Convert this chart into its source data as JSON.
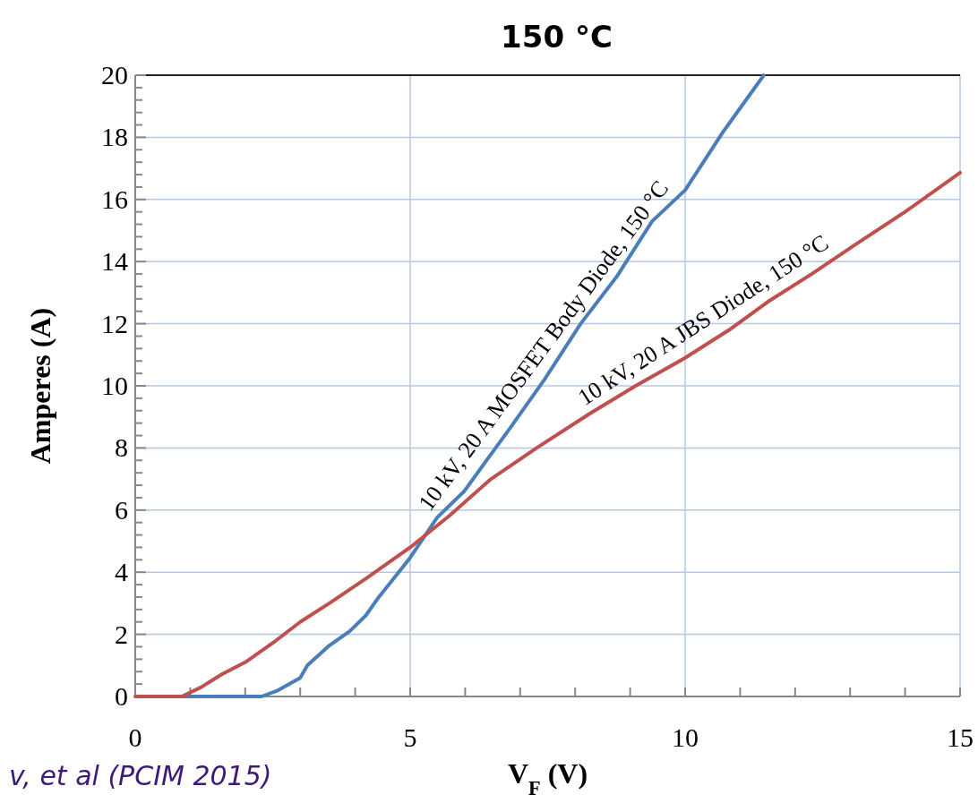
{
  "chart_data": {
    "type": "line",
    "title": "150 °C",
    "xlabel": "V$_{F}$ (V)",
    "ylabel": "Amperes (A)",
    "xlim": [
      0,
      15
    ],
    "ylim": [
      0,
      20
    ],
    "xticks": [
      0,
      {
        "value": 1,
        "label": null
      },
      {
        "value": 2,
        "label": null
      },
      {
        "value": 3,
        "label": null
      },
      {
        "value": 4,
        "label": null
      },
      5,
      {
        "value": 6,
        "label": null
      },
      {
        "value": 7,
        "label": null
      },
      {
        "value": 8,
        "label": null
      },
      {
        "value": 9,
        "label": null
      },
      10,
      {
        "value": 11,
        "label": null
      },
      {
        "value": 12,
        "label": null
      },
      {
        "value": 13,
        "label": null
      },
      {
        "value": 14,
        "label": null
      },
      15
    ],
    "yticks": [
      0,
      2,
      4,
      6,
      8,
      10,
      12,
      14,
      16,
      18,
      20
    ],
    "grid": true,
    "legend": false,
    "marker": "none",
    "line_style": "solid",
    "series": [
      {
        "name": "10 kV, 20 A MOSFET Body Diode, 150 °C",
        "color": "#4a7ebb",
        "x": [
          0.8,
          1.5,
          2.0,
          2.3,
          2.6,
          3.0,
          3.13,
          3.53,
          3.9,
          4.19,
          4.43,
          4.7,
          5.0,
          5.49,
          5.98,
          6.47,
          6.8,
          7.44,
          8.1,
          8.75,
          9.4,
          10.0,
          10.7,
          11.43
        ],
        "values": [
          0,
          0,
          0,
          0,
          0.2,
          0.6,
          1.0,
          1.64,
          2.1,
          2.6,
          3.2,
          3.8,
          4.47,
          5.76,
          6.6,
          7.8,
          8.6,
          10.2,
          12.0,
          13.5,
          15.3,
          16.3,
          18.2,
          20
        ]
      },
      {
        "name": "10 kV, 20 A JBS Diode, 150 °C",
        "color": "#c0504d",
        "x": [
          0,
          0.5,
          0.85,
          1.2,
          1.58,
          2.0,
          2.56,
          3.0,
          3.53,
          4.2,
          5.0,
          5.7,
          6.47,
          7.3,
          8.26,
          9.1,
          10.0,
          10.8,
          11.5,
          12.3,
          13.14,
          14.0,
          15.0
        ],
        "values": [
          0,
          0,
          0,
          0.3,
          0.72,
          1.1,
          1.8,
          2.4,
          3.0,
          3.8,
          4.8,
          5.8,
          7.0,
          8.0,
          9.1,
          10.0,
          10.9,
          11.8,
          12.7,
          13.6,
          14.6,
          15.6,
          16.86
        ]
      }
    ],
    "annotations": [
      "v, et al (PCIM 2015)"
    ]
  }
}
